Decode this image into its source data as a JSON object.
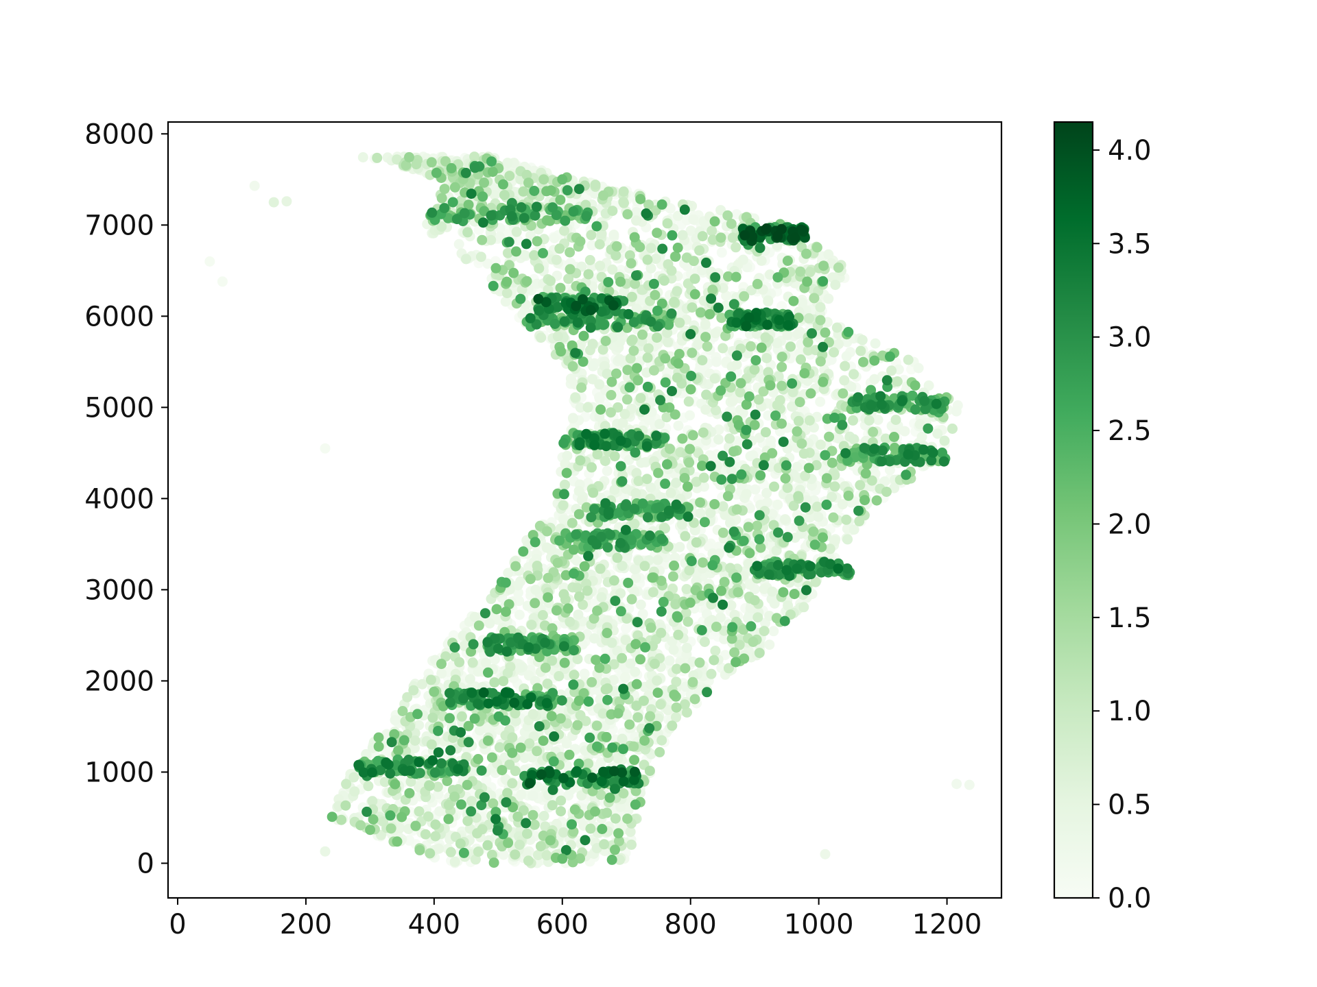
{
  "chart_data": {
    "type": "scatter",
    "title": "",
    "xlabel": "",
    "ylabel": "",
    "xlim": [
      -15,
      1285
    ],
    "ylim": [
      -380,
      8130
    ],
    "xticks": [
      0,
      200,
      400,
      600,
      800,
      1000,
      1200
    ],
    "xtick_labels": [
      "0",
      "200",
      "400",
      "600",
      "800",
      "1000",
      "1200"
    ],
    "yticks": [
      0,
      1000,
      2000,
      3000,
      4000,
      5000,
      6000,
      7000,
      8000
    ],
    "ytick_labels": [
      "0",
      "1000",
      "2000",
      "3000",
      "4000",
      "5000",
      "6000",
      "7000",
      "8000"
    ],
    "grid": false,
    "colormap": "Greens",
    "colormap_stops": [
      "#f7fcf5",
      "#e5f5e0",
      "#c7e9c0",
      "#a1d99b",
      "#74c476",
      "#41ab5d",
      "#238b45",
      "#006d2c",
      "#00441b"
    ],
    "colorbar": {
      "range": [
        0,
        4.15
      ],
      "ticks": [
        0,
        0.5,
        1.0,
        1.5,
        2.0,
        2.5,
        3.0,
        3.5,
        4.0
      ],
      "tick_labels": [
        "0.0",
        "0.5",
        "1.0",
        "1.5",
        "2.0",
        "2.5",
        "3.0",
        "3.5",
        "4.0"
      ]
    },
    "density_profile": {
      "y": [
        0,
        500,
        1000,
        1500,
        2000,
        2500,
        3000,
        3500,
        4000,
        4500,
        5000,
        5500,
        6000,
        6500,
        7000,
        7500,
        7750
      ],
      "x_min": [
        420,
        240,
        260,
        330,
        370,
        430,
        490,
        540,
        590,
        600,
        610,
        600,
        530,
        470,
        380,
        420,
        280
      ],
      "x_max": [
        700,
        720,
        740,
        770,
        860,
        940,
        1000,
        1040,
        1100,
        1200,
        1220,
        1150,
        1000,
        1050,
        960,
        620,
        490
      ]
    },
    "clusters": [
      {
        "x": [
          560,
          700
        ],
        "y": 6130,
        "level": 3.2
      },
      {
        "x": [
          540,
          780
        ],
        "y": 5950,
        "level": 2.6
      },
      {
        "x": [
          860,
          960
        ],
        "y": 5960,
        "level": 3.0
      },
      {
        "x": [
          880,
          980
        ],
        "y": 6900,
        "level": 3.4
      },
      {
        "x": [
          390,
          640
        ],
        "y": 7120,
        "level": 2.4
      },
      {
        "x": [
          600,
          760
        ],
        "y": 4650,
        "level": 2.8
      },
      {
        "x": [
          1030,
          1200
        ],
        "y": 4480,
        "level": 2.6
      },
      {
        "x": [
          1050,
          1200
        ],
        "y": 5050,
        "level": 2.6
      },
      {
        "x": [
          640,
          800
        ],
        "y": 3870,
        "level": 2.6
      },
      {
        "x": [
          600,
          760
        ],
        "y": 3540,
        "level": 2.4
      },
      {
        "x": [
          900,
          1050
        ],
        "y": 3230,
        "level": 2.8
      },
      {
        "x": [
          420,
          600
        ],
        "y": 1800,
        "level": 3.0
      },
      {
        "x": [
          540,
          720
        ],
        "y": 940,
        "level": 3.2
      },
      {
        "x": [
          280,
          450
        ],
        "y": 1060,
        "level": 2.8
      },
      {
        "x": [
          480,
          620
        ],
        "y": 2400,
        "level": 2.6
      }
    ],
    "outliers": [
      {
        "x": 230,
        "y": 130,
        "value": 0.4
      },
      {
        "x": 150,
        "y": 7250,
        "value": 0.6
      },
      {
        "x": 170,
        "y": 7260,
        "value": 0.5
      },
      {
        "x": 120,
        "y": 7430,
        "value": 0.2
      },
      {
        "x": 50,
        "y": 6600,
        "value": 0.1
      },
      {
        "x": 70,
        "y": 6380,
        "value": 0.1
      },
      {
        "x": 230,
        "y": 4550,
        "value": 0.1
      },
      {
        "x": 1010,
        "y": 100,
        "value": 0.3
      },
      {
        "x": 1215,
        "y": 870,
        "value": 0.2
      },
      {
        "x": 1235,
        "y": 860,
        "value": 0.2
      },
      {
        "x": 590,
        "y": 60,
        "value": 2.0
      },
      {
        "x": 600,
        "y": 50,
        "value": 2.2
      }
    ]
  }
}
